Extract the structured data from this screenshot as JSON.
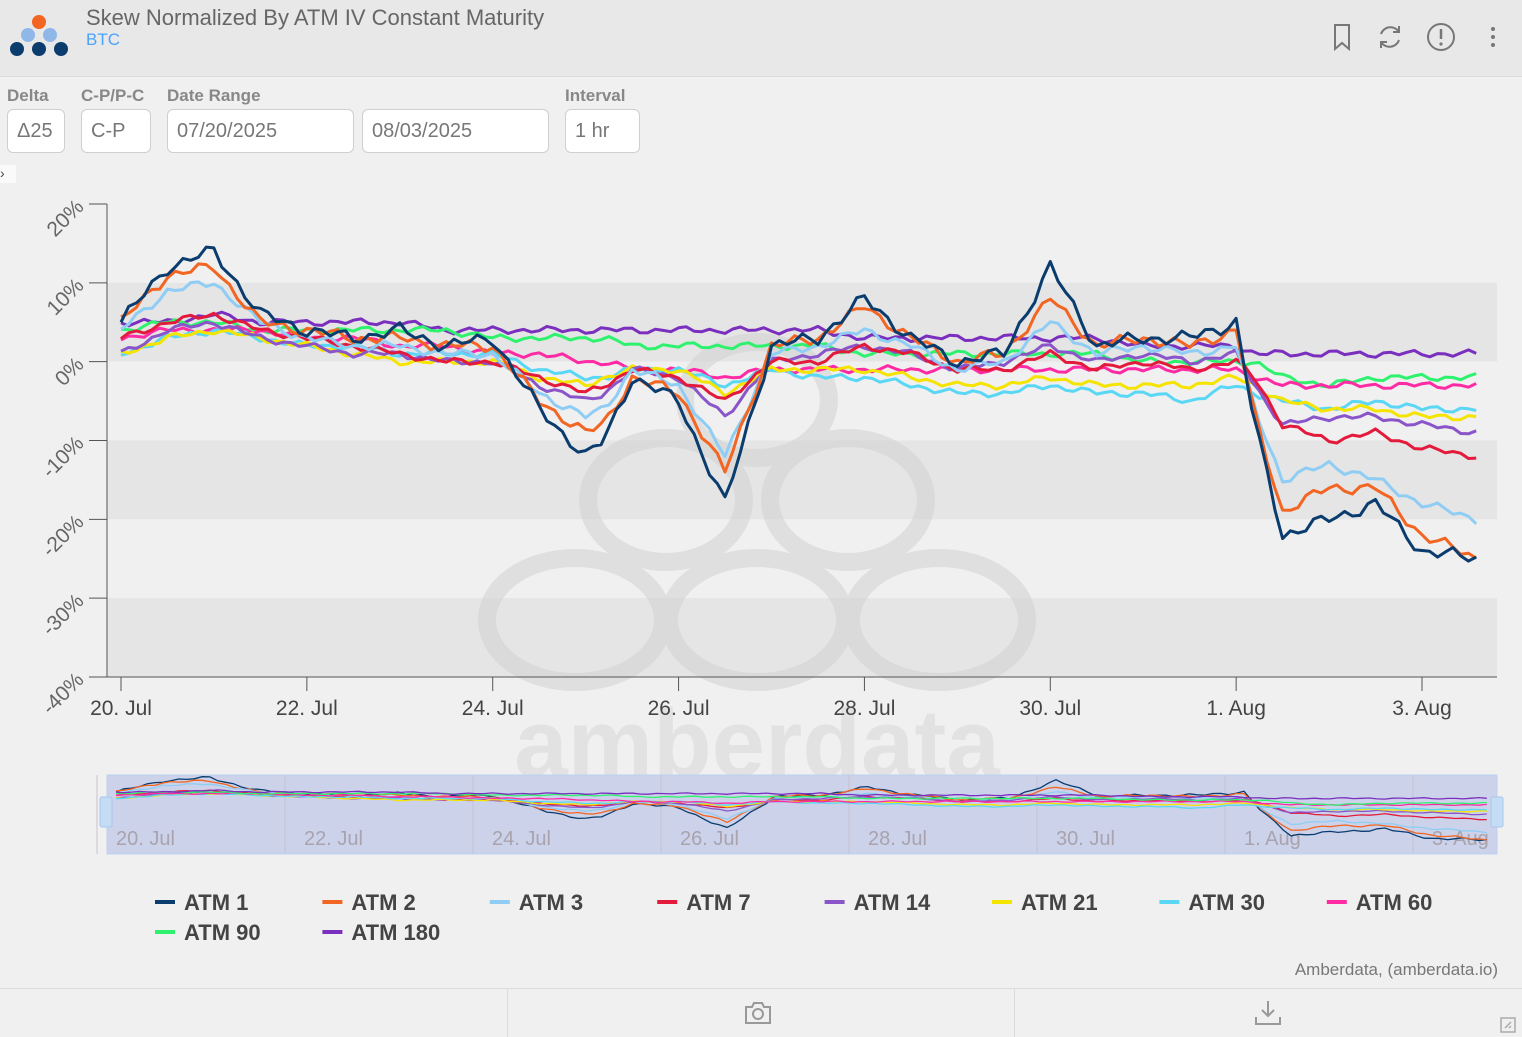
{
  "header": {
    "title": "Skew Normalized By ATM IV Constant Maturity",
    "subtitle": "BTC",
    "icons": [
      "bookmark-icon",
      "refresh-icon",
      "info-icon",
      "more-vertical-icon"
    ]
  },
  "controls": {
    "delta": {
      "label": "Delta",
      "value": "Δ25"
    },
    "cpc": {
      "label": "C-P/P-C",
      "value": "C-P"
    },
    "date_range": {
      "label": "Date Range",
      "start": "07/20/2025",
      "end": "08/03/2025"
    },
    "interval": {
      "label": "Interval",
      "value": "1 hr"
    }
  },
  "watermark": "amberdata",
  "credit": "Amberdata, (amberdata.io)",
  "footer_icons": [
    "camera-icon",
    "download-icon"
  ],
  "chart_data": {
    "type": "line",
    "title": "Skew Normalized By ATM IV Constant Maturity",
    "xlabel": "",
    "ylabel": "",
    "x_start": "2025-07-20",
    "x_end": "2025-08-03T14:00",
    "x_ticks": [
      "20. Jul",
      "22. Jul",
      "24. Jul",
      "26. Jul",
      "28. Jul",
      "30. Jul",
      "1. Aug",
      "3. Aug"
    ],
    "y_ticks": [
      "20%",
      "10%",
      "0%",
      "-10%",
      "-20%",
      "-30%",
      "-40%"
    ],
    "ylim": [
      -40,
      20
    ],
    "navigator_labels": [
      "20. Jul",
      "22. Jul",
      "24. Jul",
      "26. Jul",
      "28. Jul",
      "30. Jul",
      "1. Aug",
      "3. Aug"
    ],
    "x_days": [
      0,
      0.5,
      1,
      1.5,
      2,
      2.5,
      3,
      3.5,
      4,
      4.5,
      5,
      5.2,
      5.5,
      6,
      6.5,
      7,
      7.5,
      8,
      8.5,
      9,
      9.5,
      10,
      10.5,
      11,
      11.5,
      12,
      12.2,
      12.5,
      13,
      13.5,
      14,
      14.6
    ],
    "series": [
      {
        "name": "ATM 1",
        "color": "#0b3c6e",
        "values": [
          5,
          12,
          14,
          6,
          4,
          3,
          4,
          2,
          3,
          -6,
          -12,
          -10,
          -2,
          -5,
          -18,
          2,
          3,
          8,
          3,
          0,
          1,
          12,
          2,
          3,
          3,
          5,
          -8,
          -22,
          -20,
          -18,
          -24,
          -25
        ]
      },
      {
        "name": "ATM 2",
        "color": "#f26522",
        "values": [
          5,
          11,
          12,
          5,
          4,
          3,
          3,
          2,
          2,
          -5,
          -9,
          -8,
          -2,
          -4,
          -14,
          2,
          3,
          7,
          3,
          0,
          1,
          8,
          2,
          3,
          2,
          4,
          -7,
          -19,
          -16,
          -16,
          -22,
          -25
        ]
      },
      {
        "name": "ATM 3",
        "color": "#8fcdf5",
        "values": [
          4,
          9,
          10,
          5,
          3,
          2,
          2,
          1,
          1,
          -4,
          -7,
          -6,
          -1,
          -3,
          -12,
          1,
          2,
          4,
          2,
          -1,
          0,
          5,
          1,
          2,
          1,
          2,
          -6,
          -15,
          -13,
          -15,
          -18,
          -20
        ]
      },
      {
        "name": "ATM 7",
        "color": "#e31a3b",
        "values": [
          3,
          5,
          6,
          4,
          3,
          2,
          1,
          0,
          0,
          -2,
          -4,
          -3,
          -1,
          -2,
          -5,
          0,
          0,
          2,
          1,
          -1,
          -1,
          1,
          -1,
          0,
          -1,
          0,
          -2,
          -8,
          -10,
          -9,
          -11,
          -12
        ]
      },
      {
        "name": "ATM 14",
        "color": "#8a55c9",
        "values": [
          1,
          4,
          5,
          3,
          2,
          1,
          1,
          0,
          0,
          -3,
          -5,
          -4,
          -1,
          -2,
          -7,
          0,
          1,
          2,
          1,
          -1,
          0,
          2,
          0,
          1,
          0,
          1,
          -3,
          -8,
          -7,
          -7,
          -8,
          -9
        ]
      },
      {
        "name": "ATM 21",
        "color": "#f5e300",
        "values": [
          1,
          3,
          4,
          3,
          2,
          1,
          0,
          0,
          0,
          -2,
          -3,
          -2,
          -1,
          -1,
          -4,
          -1,
          -1,
          -1,
          -2,
          -3,
          -3,
          -2,
          -3,
          -3,
          -3,
          -2,
          -3,
          -5,
          -6,
          -6,
          -7,
          -7
        ]
      },
      {
        "name": "ATM 30",
        "color": "#5ad7f5",
        "values": [
          1,
          3,
          4,
          3,
          2,
          2,
          1,
          1,
          1,
          -1,
          -2,
          -2,
          -1,
          -1,
          -3,
          -1,
          -2,
          -2,
          -3,
          -4,
          -4,
          -3,
          -4,
          -4,
          -5,
          -3,
          -4,
          -5,
          -6,
          -5,
          -6,
          -6
        ]
      },
      {
        "name": "ATM 60",
        "color": "#ff2ba5",
        "values": [
          3,
          4,
          4,
          4,
          3,
          3,
          2,
          2,
          1,
          1,
          0,
          0,
          -1,
          -1,
          -2,
          -1,
          -1,
          -1,
          -1,
          -1,
          -1,
          -1,
          -1,
          -1,
          -1,
          -1,
          -2,
          -3,
          -3,
          -3,
          -3,
          -3
        ]
      },
      {
        "name": "ATM 90",
        "color": "#2ef26e",
        "values": [
          4,
          5,
          5,
          4,
          4,
          4,
          4,
          4,
          3,
          3,
          3,
          3,
          2,
          2,
          2,
          2,
          2,
          1,
          1,
          1,
          1,
          1,
          1,
          0,
          0,
          0,
          0,
          -2,
          -3,
          -2,
          -2,
          -2
        ]
      },
      {
        "name": "ATM 180",
        "color": "#7b2fbe",
        "values": [
          5,
          5,
          6,
          5,
          5,
          5,
          5,
          4,
          4,
          4,
          4,
          4,
          4,
          4,
          4,
          4,
          4,
          3,
          3,
          3,
          3,
          3,
          3,
          2,
          2,
          2,
          1,
          1,
          1,
          1,
          1,
          1
        ]
      }
    ]
  }
}
